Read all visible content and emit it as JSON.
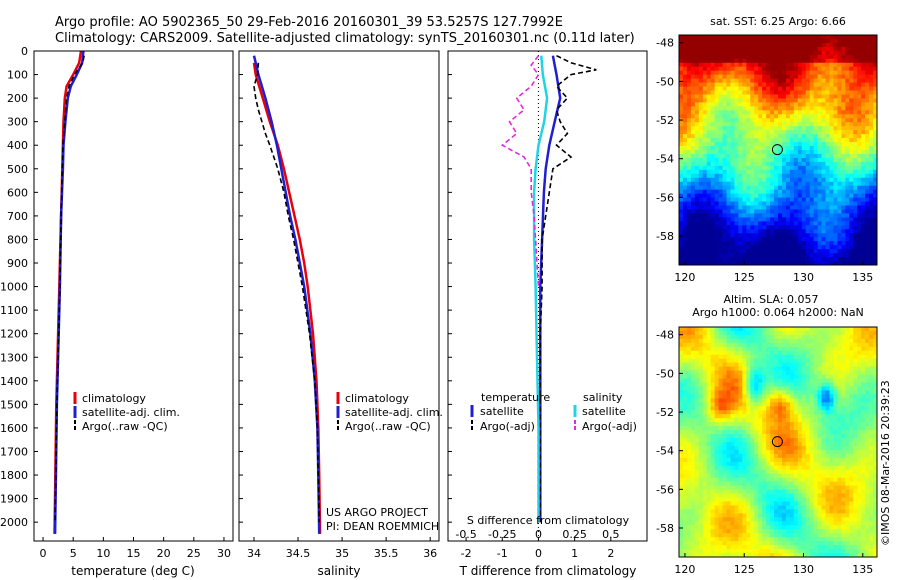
{
  "title_line1": "Argo profile: AO 5902365_50 29-Feb-2016 20160301_39 53.5257S 127.7992E",
  "title_line2": "Climatology: CARS2009. Satellite-adjusted climatology: synTS_20160301.nc (0.11d later)",
  "watermark": "©IMOS 08-Mar-2016 20:39:23",
  "colors": {
    "climatology": "#e8000b",
    "satellite": "#1f1fd0",
    "argo": "#000000",
    "sat_cyan": "#22d3e6",
    "argo_magenta": "#e32ad8"
  },
  "chart_data": [
    {
      "type": "line",
      "id": "temperature",
      "xlabel": "temperature (deg C)",
      "xticks": [
        0,
        5,
        10,
        15,
        20,
        25,
        30
      ],
      "xlim": [
        -1.5,
        31.5
      ],
      "yticks": [
        0,
        100,
        200,
        300,
        400,
        500,
        600,
        700,
        800,
        900,
        1000,
        1100,
        1200,
        1300,
        1400,
        1500,
        1600,
        1700,
        1800,
        1900,
        2000
      ],
      "ylim": [
        0,
        2080
      ],
      "legend": [
        "climatology",
        "satellite-adj. clim.",
        "Argo(..raw -QC)"
      ],
      "series": [
        {
          "name": "climatology",
          "pressure": [
            0,
            50,
            100,
            150,
            200,
            300,
            400,
            500,
            700,
            1000,
            1500,
            2050
          ],
          "values": [
            6.3,
            6.0,
            5.0,
            3.9,
            3.6,
            3.4,
            3.3,
            3.2,
            3.0,
            2.7,
            2.2,
            1.9
          ]
        },
        {
          "name": "satellite-adj. clim.",
          "pressure": [
            0,
            50,
            100,
            150,
            200,
            300,
            400,
            500,
            700,
            1000,
            1500,
            2050
          ],
          "values": [
            6.7,
            6.5,
            5.6,
            4.6,
            4.1,
            3.7,
            3.4,
            3.3,
            3.0,
            2.8,
            2.3,
            2.0
          ]
        },
        {
          "name": "Argo(..raw -QC)",
          "pressure": [
            20,
            50,
            100,
            150,
            200,
            300,
            400,
            500,
            700,
            1000,
            1500,
            2000
          ],
          "values": [
            6.8,
            6.6,
            5.2,
            4.3,
            3.9,
            3.6,
            3.3,
            3.2,
            3.0,
            2.8,
            2.3,
            2.0
          ]
        }
      ]
    },
    {
      "type": "line",
      "id": "salinity",
      "xlabel": "salinity",
      "xticks": [
        34,
        34.5,
        35,
        35.5,
        36
      ],
      "xlim": [
        33.83,
        36.1
      ],
      "yticks": [
        0,
        100,
        200,
        300,
        400,
        500,
        600,
        700,
        800,
        900,
        1000,
        1100,
        1200,
        1300,
        1400,
        1500,
        1600,
        1700,
        1800,
        1900,
        2000
      ],
      "ylim": [
        0,
        2080
      ],
      "legend": [
        "climatology",
        "satellite-adj. clim.",
        "Argo(..raw -QC)"
      ],
      "annotations": [
        "US ARGO PROJECT",
        "PI: DEAN ROEMMICH"
      ],
      "series": [
        {
          "name": "climatology",
          "pressure": [
            50,
            100,
            200,
            300,
            400,
            500,
            600,
            700,
            800,
            900,
            1000,
            1200,
            1400,
            1600,
            1800,
            2050
          ],
          "values": [
            34.0,
            34.02,
            34.1,
            34.18,
            34.27,
            34.34,
            34.4,
            34.46,
            34.52,
            34.57,
            34.61,
            34.67,
            34.71,
            34.73,
            34.74,
            34.75
          ]
        },
        {
          "name": "satellite-adj. clim.",
          "pressure": [
            20,
            50,
            100,
            200,
            300,
            400,
            500,
            600,
            700,
            800,
            900,
            1000,
            1200,
            1400,
            1600,
            1800,
            2050
          ],
          "values": [
            34.0,
            34.02,
            34.05,
            34.13,
            34.2,
            34.26,
            34.31,
            34.36,
            34.41,
            34.47,
            34.52,
            34.57,
            34.64,
            34.69,
            34.72,
            34.73,
            34.74
          ]
        },
        {
          "name": "Argo(..raw -QC)",
          "pressure": [
            50,
            100,
            150,
            200,
            250,
            300,
            350,
            400,
            500,
            600,
            700,
            800,
            900,
            1000,
            1200,
            1400,
            1600,
            1800,
            2000
          ],
          "values": [
            34.05,
            34.04,
            34.0,
            34.02,
            34.05,
            34.09,
            34.13,
            34.18,
            34.27,
            34.34,
            34.39,
            34.45,
            34.5,
            34.55,
            34.63,
            34.69,
            34.72,
            34.73,
            34.74
          ]
        }
      ]
    },
    {
      "type": "line",
      "id": "differences",
      "xlabel": "T difference from climatology",
      "xlabel_top": "S difference from climatology",
      "xticks": [
        -2,
        -1,
        0,
        1,
        2
      ],
      "xticks_top": [
        "-0.5",
        "-0.25",
        "0",
        "0.25",
        "0.5"
      ],
      "xlim": [
        -2.5,
        3.0
      ],
      "yticks": [
        0,
        100,
        200,
        300,
        400,
        500,
        600,
        700,
        800,
        900,
        1000,
        1100,
        1200,
        1300,
        1400,
        1500,
        1600,
        1700,
        1800,
        1900,
        2000
      ],
      "ylim": [
        0,
        2080
      ],
      "legend_left_title": "temperature",
      "legend_right_title": "salinity",
      "legend_left": [
        "satellite",
        "Argo(-adj)"
      ],
      "legend_right": [
        "satellite",
        "Argo(-adj)"
      ],
      "series": [
        {
          "name": "T satellite",
          "pressure": [
            20,
            100,
            200,
            300,
            400,
            500,
            600,
            800,
            1000,
            1300,
            1600,
            2000
          ],
          "values": [
            0.4,
            0.5,
            0.6,
            0.45,
            0.3,
            0.2,
            0.15,
            0.1,
            0.05,
            0.05,
            0.05,
            0.05
          ]
        },
        {
          "name": "T Argo(-adj)",
          "pressure": [
            20,
            50,
            80,
            100,
            150,
            200,
            250,
            300,
            350,
            400,
            450,
            500,
            600,
            700,
            800,
            1000,
            1200,
            1500,
            2000
          ],
          "values": [
            0.5,
            0.9,
            1.6,
            0.9,
            0.5,
            0.8,
            0.5,
            0.6,
            0.8,
            0.5,
            0.9,
            0.4,
            0.3,
            0.2,
            0.1,
            0.1,
            0.05,
            0.05,
            0.05
          ]
        },
        {
          "name": "S satellite",
          "pressure": [
            20,
            100,
            200,
            300,
            400,
            500,
            600,
            800,
            1000,
            1300,
            1600,
            2000
          ],
          "values": [
            0.02,
            0.03,
            0.06,
            0.04,
            0.0,
            -0.02,
            -0.03,
            -0.03,
            -0.02,
            -0.01,
            0.0,
            0.0
          ]
        },
        {
          "name": "S Argo(-adj)",
          "pressure": [
            20,
            60,
            100,
            150,
            200,
            250,
            300,
            350,
            400,
            450,
            500,
            600,
            700,
            800,
            900,
            1000
          ],
          "values": [
            0.0,
            -0.05,
            0.0,
            -0.05,
            -0.15,
            -0.1,
            -0.2,
            -0.15,
            -0.25,
            -0.1,
            -0.05,
            -0.05,
            -0.03,
            -0.02,
            -0.01,
            0.0
          ]
        }
      ]
    },
    {
      "type": "heatmap",
      "id": "sst_map",
      "title": "sat. SST: 6.25 Argo: 6.66",
      "xticks": [
        120,
        125,
        130,
        135
      ],
      "yticks": [
        -48,
        -50,
        -52,
        -54,
        -56,
        -58
      ],
      "xlim": [
        119.5,
        136.2
      ],
      "ylim": [
        -59.5,
        -47.6
      ],
      "marker": {
        "lon": 127.8,
        "lat": -53.53
      }
    },
    {
      "type": "heatmap",
      "id": "sla_map",
      "title": "Altim. SLA: 0.057",
      "subtitle": "Argo h1000: 0.064 h2000: NaN",
      "xticks": [
        120,
        125,
        130,
        135
      ],
      "yticks": [
        -48,
        -50,
        -52,
        -54,
        -56,
        -58
      ],
      "xlim": [
        119.5,
        136.2
      ],
      "ylim": [
        -59.5,
        -47.6
      ],
      "marker": {
        "lon": 127.8,
        "lat": -53.53
      }
    }
  ]
}
